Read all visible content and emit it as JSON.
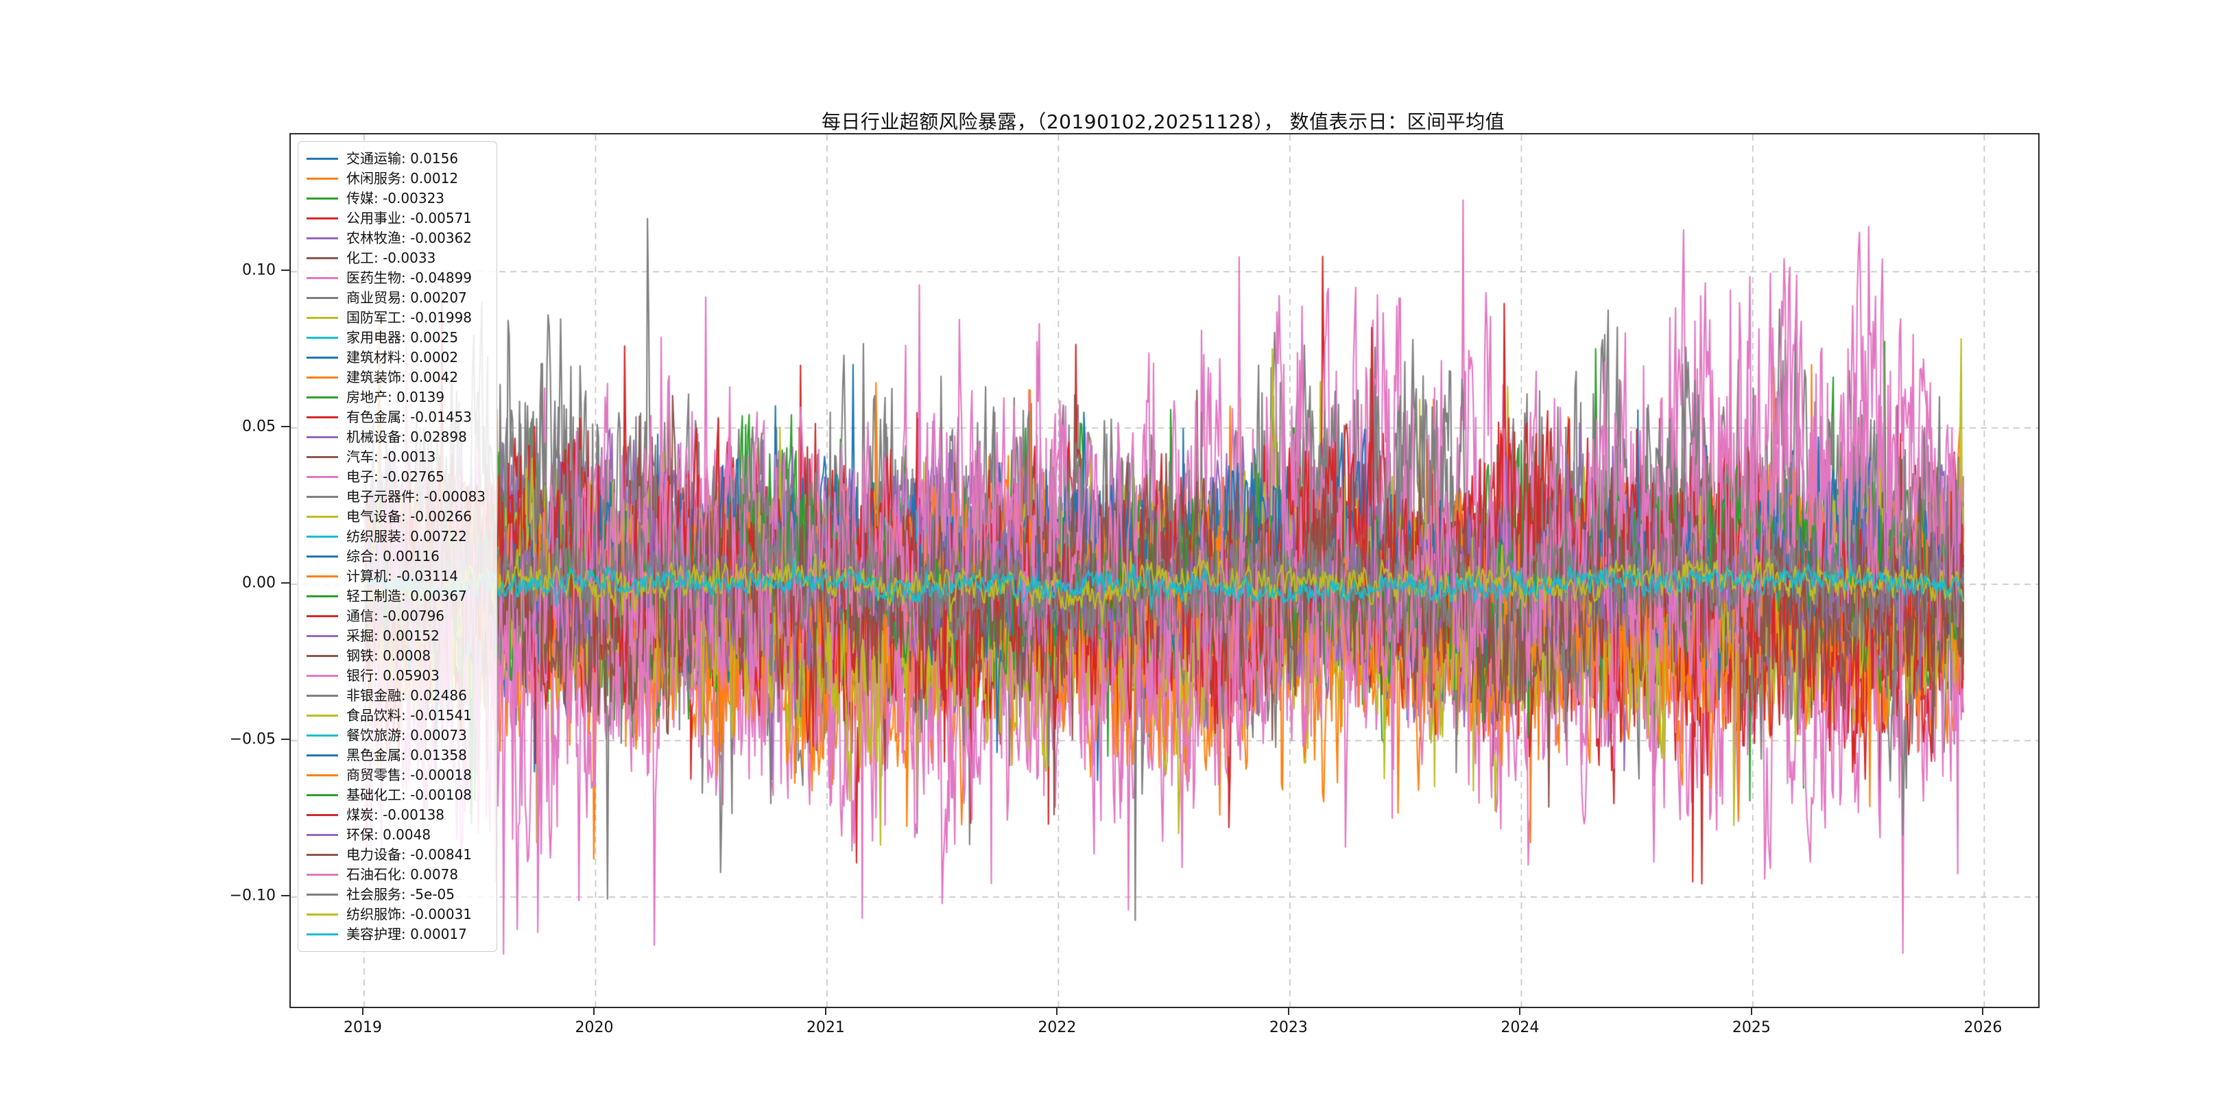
{
  "chart": {
    "title": "每日行业超额风险暴露，（20190102,20251128）， 数值表示日：区间平均值"
  },
  "chart_data": {
    "type": "line",
    "title": "每日行业超额风险暴露，（20190102,20251128）， 数值表示日：区间平均值",
    "xlabel": "",
    "ylabel": "",
    "date_range_start": "20190102",
    "date_range_end": "20251128",
    "value_meaning": "区间平均值",
    "xlim": [
      2018.683,
      2026.233
    ],
    "ylim": [
      -0.1351,
      0.1439
    ],
    "x_start": 2019.005,
    "x_end": 2025.91,
    "n_points": 1400,
    "grid": true,
    "grid_style": "dashed",
    "legend_position": "upper left",
    "x_ticks": [
      2019,
      2020,
      2021,
      2022,
      2023,
      2024,
      2025,
      2026
    ],
    "x_tick_labels": [
      "2019",
      "2020",
      "2021",
      "2022",
      "2023",
      "2024",
      "2025",
      "2026"
    ],
    "y_ticks": [
      0.1,
      0.05,
      0.0,
      -0.05,
      -0.1
    ],
    "y_tick_labels": [
      "0.10",
      "0.05",
      "0.00",
      "−0.05",
      "−0.10"
    ],
    "series": [
      {
        "name": "交通运输",
        "value": "0.0156",
        "color": "#1f77b4",
        "amp": 0.05,
        "mean": 0.005
      },
      {
        "name": "休闲服务",
        "value": "0.0012",
        "color": "#ff7f0e",
        "amp": 0.07,
        "mean": -0.01
      },
      {
        "name": "传媒",
        "value": "-0.00323",
        "color": "#2ca02c",
        "amp": 0.07,
        "mean": 0.0
      },
      {
        "name": "公用事业",
        "value": "-0.00571",
        "color": "#d62728",
        "amp": 0.035,
        "mean": -0.002
      },
      {
        "name": "农林牧渔",
        "value": "-0.00362",
        "color": "#9467bd",
        "amp": 0.06,
        "mean": 0.0
      },
      {
        "name": "化工",
        "value": "-0.0033",
        "color": "#8c564b",
        "amp": 0.05,
        "mean": 0.0
      },
      {
        "name": "医药生物",
        "value": "-0.04899",
        "color": "#e377c2",
        "amp": 0.09,
        "mean": -0.012,
        "trend": [
          0.0,
          -0.02
        ]
      },
      {
        "name": "商业贸易",
        "value": "0.00207",
        "color": "#7f7f7f",
        "amp": 0.11,
        "mean": 0.012
      },
      {
        "name": "国防军工",
        "value": "-0.01998",
        "color": "#bcbd22",
        "amp": 0.07,
        "mean": -0.008
      },
      {
        "name": "家用电器",
        "value": "0.0025",
        "color": "#17becf",
        "amp": 0.008,
        "mean": 0.001
      },
      {
        "name": "建筑材料",
        "value": "0.0002",
        "color": "#1f77b4",
        "amp": 0.04,
        "mean": 0.0
      },
      {
        "name": "建筑装饰",
        "value": "0.0042",
        "color": "#ff7f0e",
        "amp": 0.05,
        "mean": 0.002
      },
      {
        "name": "房地产",
        "value": "0.0139",
        "color": "#2ca02c",
        "amp": 0.06,
        "mean": 0.005
      },
      {
        "name": "有色金属",
        "value": "-0.01453",
        "color": "#d62728",
        "amp": 0.08,
        "mean": -0.005
      },
      {
        "name": "机械设备",
        "value": "0.02898",
        "color": "#9467bd",
        "amp": 0.06,
        "mean": 0.01
      },
      {
        "name": "汽车",
        "value": "-0.0013",
        "color": "#8c564b",
        "amp": 0.05,
        "mean": 0.0
      },
      {
        "name": "电子",
        "value": "-0.02765",
        "color": "#e377c2",
        "amp": 0.08,
        "mean": -0.01
      },
      {
        "name": "电子元器件",
        "value": "-0.00083",
        "color": "#7f7f7f",
        "amp": 0.05,
        "mean": 0.0
      },
      {
        "name": "电气设备",
        "value": "-0.00266",
        "color": "#bcbd22",
        "amp": 0.05,
        "mean": 0.0
      },
      {
        "name": "纺织服装",
        "value": "0.00722",
        "color": "#17becf",
        "amp": 0.03,
        "mean": 0.003
      },
      {
        "name": "综合",
        "value": "0.00116",
        "color": "#1f77b4",
        "amp": 0.04,
        "mean": 0.0
      },
      {
        "name": "计算机",
        "value": "-0.03114",
        "color": "#ff7f0e",
        "amp": 0.08,
        "mean": -0.012
      },
      {
        "name": "轻工制造",
        "value": "0.00367",
        "color": "#2ca02c",
        "amp": 0.04,
        "mean": 0.002
      },
      {
        "name": "通信",
        "value": "-0.00796",
        "color": "#d62728",
        "amp": 0.07,
        "mean": -0.005
      },
      {
        "name": "采掘",
        "value": "0.00152",
        "color": "#9467bd",
        "amp": 0.05,
        "mean": 0.0
      },
      {
        "name": "钢铁",
        "value": "0.0008",
        "color": "#8c564b",
        "amp": 0.05,
        "mean": 0.0
      },
      {
        "name": "银行",
        "value": "0.05903",
        "color": "#e377c2",
        "amp": 0.12,
        "mean": 0.0,
        "trend": [
          -0.035,
          0.055
        ]
      },
      {
        "name": "非银金融",
        "value": "0.02486",
        "color": "#7f7f7f",
        "amp": 0.09,
        "mean": 0.01
      },
      {
        "name": "食品饮料",
        "value": "-0.01541",
        "color": "#bcbd22",
        "amp": 0.07,
        "mean": -0.008
      },
      {
        "name": "餐饮旅游",
        "value": "0.00073",
        "color": "#17becf",
        "amp": 0.012,
        "mean": 0.0
      },
      {
        "name": "黑色金属",
        "value": "0.01358",
        "color": "#1f77b4",
        "amp": 0.05,
        "mean": 0.005
      },
      {
        "name": "商贸零售",
        "value": "-0.00018",
        "color": "#ff7f0e",
        "amp": 0.05,
        "mean": 0.0
      },
      {
        "name": "基础化工",
        "value": "-0.00108",
        "color": "#2ca02c",
        "amp": 0.045,
        "mean": 0.0
      },
      {
        "name": "煤炭",
        "value": "-0.00138",
        "color": "#d62728",
        "amp": 0.07,
        "mean": 0.0
      },
      {
        "name": "环保",
        "value": "0.0048",
        "color": "#9467bd",
        "amp": 0.04,
        "mean": 0.002
      },
      {
        "name": "电力设备",
        "value": "-0.00841",
        "color": "#8c564b",
        "amp": 0.06,
        "mean": -0.005
      },
      {
        "name": "石油石化",
        "value": "0.0078",
        "color": "#e377c2",
        "amp": 0.08,
        "mean": 0.005
      },
      {
        "name": "社会服务",
        "value": "-5e-05",
        "color": "#7f7f7f",
        "amp": 0.03,
        "mean": 0.0
      },
      {
        "name": "纺织服饰",
        "value": "-0.00031",
        "color": "#bcbd22",
        "amp": 0.012,
        "mean": 0.0
      },
      {
        "name": "美容护理",
        "value": "0.00017",
        "color": "#17becf",
        "amp": 0.008,
        "mean": 0.0
      }
    ]
  }
}
